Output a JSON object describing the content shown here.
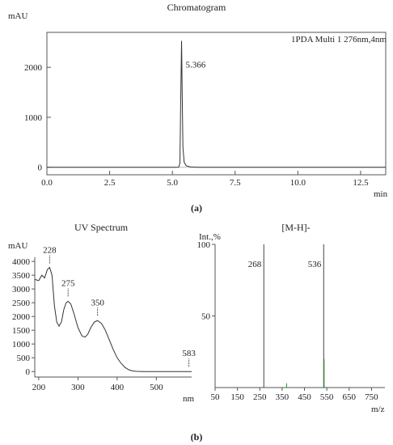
{
  "panel_a_label": "(a)",
  "panel_b_label": "(b)",
  "chart_data": [
    {
      "type": "line",
      "title": "Chromatogram",
      "ylabel": "mAU",
      "xlabel": "min",
      "trace_label": "1PDA Multi 1 276nm,4nm",
      "xlim": [
        0,
        13.5
      ],
      "ylim": [
        -150,
        2700
      ],
      "x_ticks": [
        0.0,
        2.5,
        5.0,
        7.5,
        10.0,
        12.5
      ],
      "x_tick_labels": [
        "0.0",
        "2.5",
        "5.0",
        "7.5",
        "10.0",
        "12.5"
      ],
      "y_ticks": [
        0,
        1000,
        2000
      ],
      "y_tick_labels": [
        "0",
        "1000",
        "2000"
      ],
      "peaks": [
        {
          "x": 5.366,
          "y": 2530,
          "label": "5.366"
        }
      ],
      "series": [
        {
          "values_xy": [
            [
              0,
              0
            ],
            [
              5.15,
              0
            ],
            [
              5.25,
              2
            ],
            [
              5.3,
              80
            ],
            [
              5.33,
              1300
            ],
            [
              5.366,
              2530
            ],
            [
              5.39,
              1500
            ],
            [
              5.42,
              400
            ],
            [
              5.47,
              100
            ],
            [
              5.55,
              30
            ],
            [
              5.7,
              8
            ],
            [
              6.0,
              0
            ],
            [
              13.5,
              0
            ]
          ]
        }
      ]
    },
    {
      "type": "line",
      "title": "UV Spectrum",
      "ylabel": "mAU",
      "xlabel": "nm",
      "xlim": [
        190,
        590
      ],
      "ylim": [
        -200,
        4150
      ],
      "x_ticks": [
        200,
        300,
        400,
        500
      ],
      "x_tick_labels": [
        "200",
        "300",
        "400",
        "500"
      ],
      "y_ticks": [
        0,
        500,
        1000,
        1500,
        2000,
        2500,
        3000,
        3500,
        4000
      ],
      "y_tick_labels": [
        "0",
        "500",
        "1000",
        "1500",
        "2000",
        "2500",
        "3000",
        "3500",
        "4000"
      ],
      "peak_labels": [
        {
          "x": 228,
          "y": 3750,
          "label": "228"
        },
        {
          "x": 275,
          "y": 2550,
          "label": "275"
        },
        {
          "x": 350,
          "y": 1850,
          "label": "350"
        },
        {
          "x": 583,
          "y": 0,
          "label": "583"
        }
      ],
      "series": [
        {
          "values_xy": [
            [
              190,
              3350
            ],
            [
              200,
              3300
            ],
            [
              208,
              3500
            ],
            [
              215,
              3400
            ],
            [
              222,
              3700
            ],
            [
              228,
              3780
            ],
            [
              234,
              3500
            ],
            [
              240,
              2400
            ],
            [
              246,
              1800
            ],
            [
              252,
              1650
            ],
            [
              258,
              1800
            ],
            [
              264,
              2250
            ],
            [
              270,
              2500
            ],
            [
              275,
              2550
            ],
            [
              282,
              2450
            ],
            [
              290,
              2100
            ],
            [
              300,
              1600
            ],
            [
              310,
              1300
            ],
            [
              318,
              1250
            ],
            [
              325,
              1350
            ],
            [
              333,
              1600
            ],
            [
              342,
              1800
            ],
            [
              350,
              1850
            ],
            [
              360,
              1750
            ],
            [
              370,
              1500
            ],
            [
              380,
              1150
            ],
            [
              390,
              800
            ],
            [
              400,
              500
            ],
            [
              410,
              300
            ],
            [
              420,
              150
            ],
            [
              430,
              60
            ],
            [
              440,
              20
            ],
            [
              450,
              5
            ],
            [
              470,
              0
            ],
            [
              500,
              0
            ],
            [
              540,
              0
            ],
            [
              583,
              0
            ],
            [
              590,
              0
            ]
          ]
        }
      ]
    },
    {
      "type": "bar",
      "title": "[M-H]-",
      "ylabel": "Int.,%",
      "xlabel": "m/z",
      "xlim": [
        50,
        810
      ],
      "ylim": [
        0,
        100
      ],
      "x_ticks": [
        50,
        150,
        250,
        350,
        450,
        550,
        650,
        750
      ],
      "x_tick_labels": [
        "50",
        "150",
        "250",
        "350",
        "450",
        "550",
        "650",
        "750"
      ],
      "y_ticks": [
        50,
        100
      ],
      "y_tick_labels": [
        "50",
        "100"
      ],
      "peaks": [
        {
          "x": 268,
          "y": 100,
          "label": "268"
        },
        {
          "x": 536,
          "y": 100,
          "label": "536"
        },
        {
          "x": 538,
          "y": 20,
          "label": ""
        },
        {
          "x": 370,
          "y": 3,
          "label": ""
        }
      ]
    }
  ]
}
